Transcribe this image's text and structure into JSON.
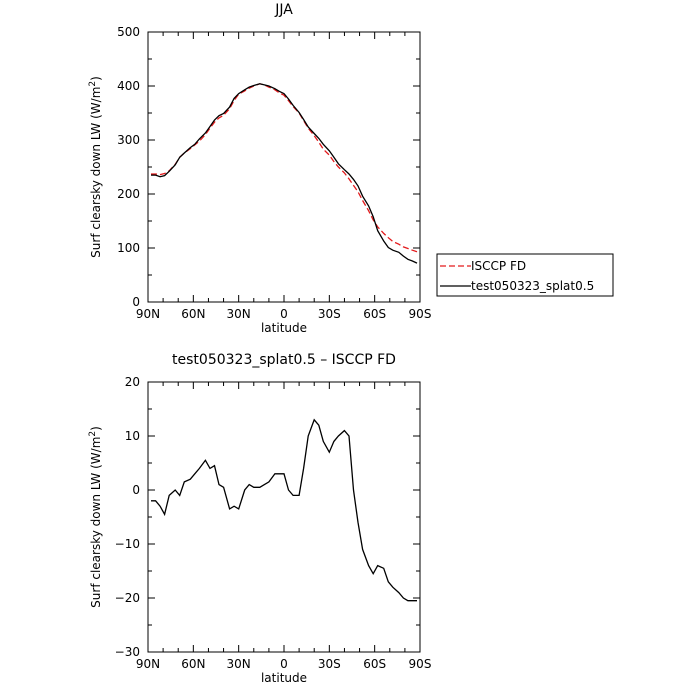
{
  "chart_data": [
    {
      "type": "line",
      "title": "JJA",
      "xlabel": "latitude",
      "ylabel": "Surf clearsky down LW (W/m",
      "ylabel_sup": "2",
      "ylabel_end": ")",
      "xlim": [
        90,
        -90
      ],
      "ylim": [
        0,
        500
      ],
      "xticks": [
        90,
        60,
        30,
        0,
        -30,
        -60,
        -90
      ],
      "xtick_labels": [
        "90N",
        "60N",
        "30N",
        "0",
        "30S",
        "60S",
        "90S"
      ],
      "yticks": [
        0,
        100,
        200,
        300,
        400,
        500
      ],
      "ytick_labels": [
        "0",
        "100",
        "200",
        "300",
        "400",
        "500"
      ],
      "legend": "right",
      "series": [
        {
          "name": "ISCCP FD",
          "color": "#e31a1c",
          "dash": "dashed",
          "x": [
            88,
            85,
            82,
            79,
            76,
            72,
            69,
            66,
            62,
            59,
            56,
            52,
            49,
            46,
            43,
            40,
            36,
            33,
            30,
            26,
            23,
            20,
            16,
            13,
            10,
            6,
            3,
            0,
            -3,
            -6,
            -10,
            -13,
            -16,
            -20,
            -23,
            -26,
            -30,
            -33,
            -36,
            -40,
            -43,
            -46,
            -49,
            -52,
            -56,
            -59,
            -62,
            -66,
            -69,
            -72,
            -76,
            -79,
            -82,
            -85,
            -88
          ],
          "y": [
            237,
            237,
            236,
            238,
            243,
            255,
            268,
            276,
            284,
            291,
            298,
            310,
            322,
            333,
            341,
            346,
            358,
            373,
            385,
            391,
            396,
            400,
            404,
            402,
            398,
            393,
            387,
            383,
            373,
            362,
            350,
            336,
            322,
            308,
            296,
            283,
            272,
            260,
            250,
            239,
            228,
            216,
            204,
            188,
            169,
            152,
            139,
            127,
            119,
            112,
            107,
            102,
            99,
            96,
            93
          ]
        },
        {
          "name": "test050323_splat0.5",
          "color": "#000000",
          "dash": "solid",
          "x": [
            88,
            85,
            82,
            79,
            76,
            72,
            69,
            66,
            62,
            59,
            56,
            52,
            49,
            46,
            43,
            40,
            36,
            33,
            30,
            26,
            23,
            20,
            16,
            13,
            10,
            6,
            3,
            0,
            -3,
            -6,
            -10,
            -13,
            -16,
            -20,
            -23,
            -26,
            -30,
            -33,
            -36,
            -40,
            -43,
            -46,
            -49,
            -52,
            -56,
            -59,
            -62,
            -66,
            -69,
            -72,
            -76,
            -79,
            -82,
            -85,
            -88
          ],
          "y": [
            235,
            235,
            232,
            234,
            242,
            254,
            268,
            276,
            286,
            292,
            302,
            313,
            325,
            337,
            345,
            349,
            361,
            377,
            386,
            393,
            398,
            401,
            404,
            402,
            400,
            395,
            390,
            386,
            376,
            364,
            351,
            338,
            324,
            312,
            303,
            292,
            280,
            268,
            256,
            245,
            237,
            227,
            215,
            196,
            178,
            158,
            132,
            113,
            101,
            96,
            92,
            85,
            79,
            76,
            72
          ]
        }
      ]
    },
    {
      "type": "line",
      "title": "test050323_splat0.5 – ISCCP FD",
      "xlabel": "latitude",
      "ylabel": "Surf clearsky down LW (W/m",
      "ylabel_sup": "2",
      "ylabel_end": ")",
      "xlim": [
        90,
        -90
      ],
      "ylim": [
        -30,
        20
      ],
      "xticks": [
        90,
        60,
        30,
        0,
        -30,
        -60,
        -90
      ],
      "xtick_labels": [
        "90N",
        "60N",
        "30N",
        "0",
        "30S",
        "60S",
        "90S"
      ],
      "yticks": [
        -30,
        -20,
        -10,
        0,
        10,
        20
      ],
      "ytick_labels": [
        "−30",
        "−20",
        "−10",
        "0",
        "10",
        "20"
      ],
      "series": [
        {
          "color": "#000000",
          "dash": "solid",
          "x": [
            88,
            85,
            82,
            79,
            76,
            72,
            69,
            66,
            62,
            59,
            56,
            52,
            49,
            46,
            43,
            40,
            36,
            33,
            30,
            26,
            23,
            20,
            16,
            13,
            10,
            6,
            3,
            0,
            -3,
            -6,
            -10,
            -13,
            -16,
            -20,
            -23,
            -26,
            -30,
            -33,
            -36,
            -40,
            -43,
            -46,
            -49,
            -52,
            -56,
            -59,
            -62,
            -66,
            -69,
            -72,
            -76,
            -79,
            -82,
            -85,
            -88
          ],
          "y": [
            -2,
            -2,
            -3,
            -4.5,
            -1,
            0,
            -1,
            1.5,
            2,
            3,
            4,
            5.5,
            4,
            4.5,
            1,
            0.5,
            -3.5,
            -3,
            -3.5,
            0,
            1,
            0.5,
            0.5,
            1,
            1.5,
            3,
            3,
            3,
            0,
            -1,
            -1,
            4,
            10,
            13,
            12,
            9,
            7,
            9,
            10,
            11,
            10,
            0,
            -6,
            -11,
            -14,
            -15.5,
            -14,
            -14.5,
            -17,
            -18,
            -19,
            -20,
            -20.5,
            -20.5,
            -20.5
          ]
        }
      ]
    }
  ]
}
